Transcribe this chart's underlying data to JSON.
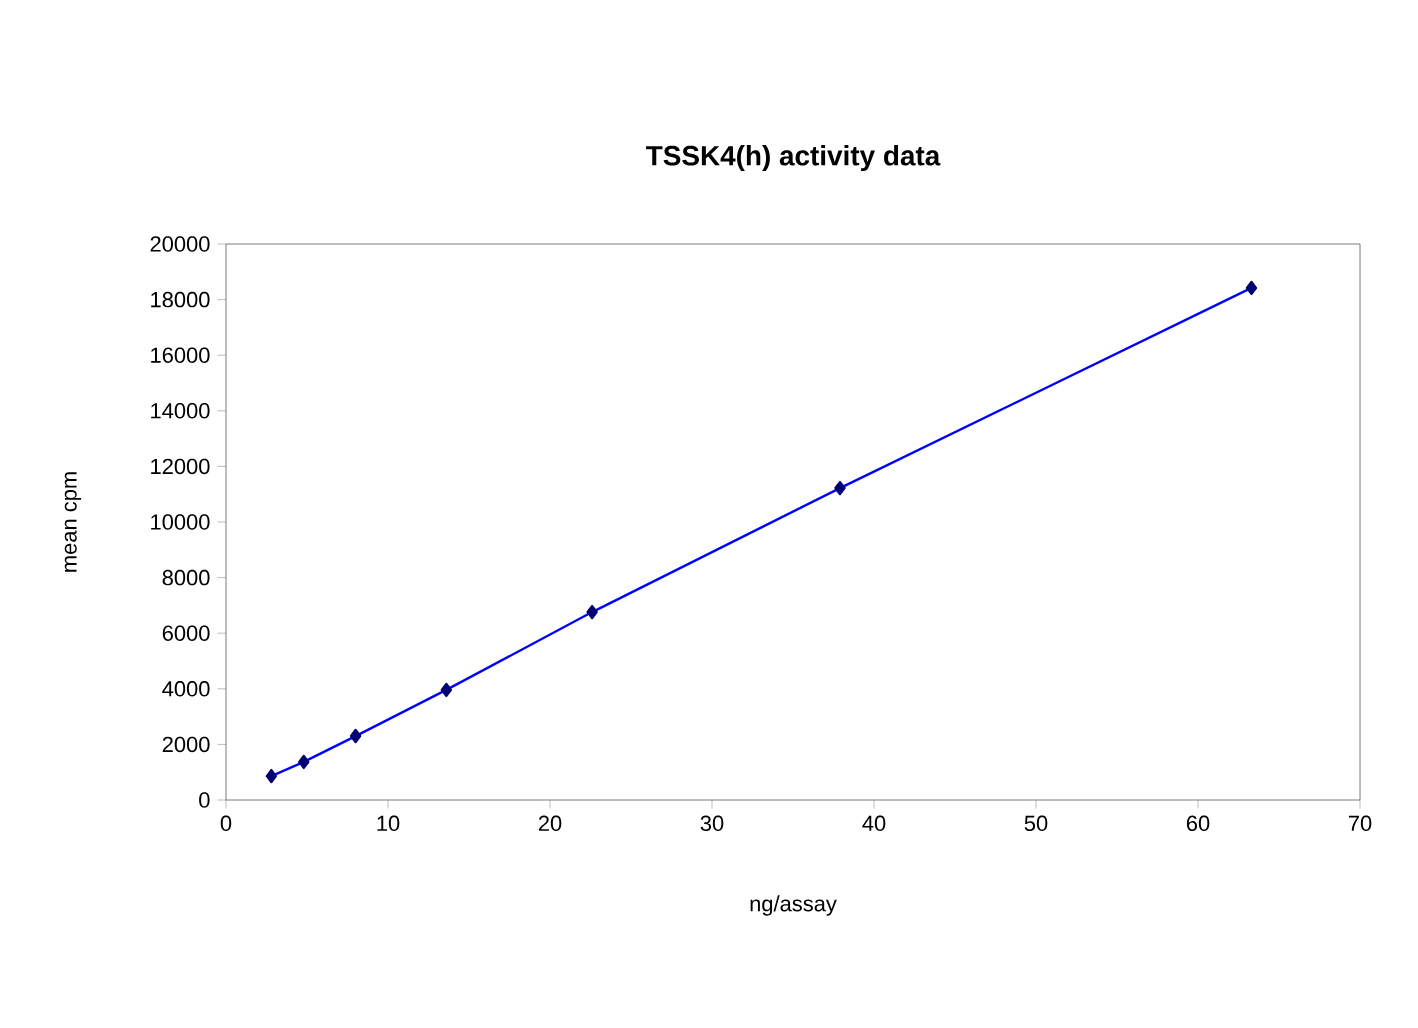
{
  "chart_data": {
    "type": "line",
    "title": "TSSK4(h) activity data",
    "xlabel": "ng/assay",
    "ylabel": "mean cpm",
    "x": [
      2.8,
      4.8,
      8.0,
      13.6,
      22.6,
      37.9,
      63.3
    ],
    "series": [
      {
        "color": "#0000ff",
        "values": [
          860,
          1370,
          2300,
          3960,
          6760,
          11220,
          18420
        ]
      }
    ],
    "xlim": [
      0,
      70
    ],
    "xticks": [
      0,
      10,
      20,
      30,
      40,
      50,
      60,
      70
    ],
    "ylim": [
      0,
      20000
    ],
    "yticks": [
      0,
      2000,
      4000,
      6000,
      8000,
      10000,
      12000,
      14000,
      16000,
      18000,
      20000
    ],
    "marker": "diamond",
    "line_style": "solid",
    "grid": false
  }
}
